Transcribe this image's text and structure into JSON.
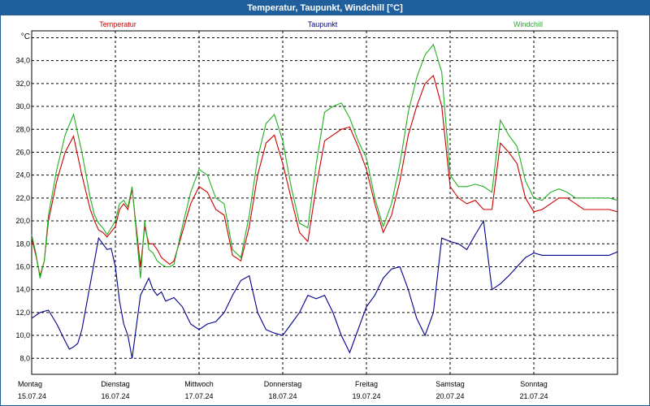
{
  "title": "Temperatur, Taupunkt, Windchill [°C]",
  "chart_data": {
    "type": "line",
    "title": "Temperatur, Taupunkt, Windchill [°C]",
    "ylabel": "°C",
    "xlabel": "",
    "ylim": [
      6.6,
      36.6
    ],
    "xlim": [
      0,
      7
    ],
    "yticks": [
      8.0,
      10.0,
      12.0,
      14.0,
      16.0,
      18.0,
      20.0,
      22.0,
      24.0,
      26.0,
      28.0,
      30.0,
      32.0,
      34.0
    ],
    "ytick_labels": [
      "8,0",
      "10,0",
      "12,0",
      "14,0",
      "16,0",
      "18,0",
      "20,0",
      "22,0",
      "24,0",
      "26,0",
      "28,0",
      "30,0",
      "32,0",
      "34,0"
    ],
    "x_ticks": [
      {
        "day": "Montag",
        "date": "15.07.24"
      },
      {
        "day": "Dienstag",
        "date": "16.07.24"
      },
      {
        "day": "Mittwoch",
        "date": "17.07.24"
      },
      {
        "day": "Donnerstag",
        "date": "18.07.24"
      },
      {
        "day": "Freitag",
        "date": "19.07.24"
      },
      {
        "day": "Samstag",
        "date": "20.07.24"
      },
      {
        "day": "Sonntag",
        "date": "21.07.24"
      }
    ],
    "grid": true,
    "legend_placement": "top",
    "series": [
      {
        "name": "Temperatur",
        "color": "#cc0000",
        "x": [
          0.0,
          0.05,
          0.1,
          0.15,
          0.2,
          0.3,
          0.4,
          0.5,
          0.6,
          0.7,
          0.75,
          0.8,
          0.85,
          0.9,
          1.0,
          1.05,
          1.1,
          1.15,
          1.2,
          1.3,
          1.35,
          1.4,
          1.45,
          1.5,
          1.55,
          1.6,
          1.65,
          1.7,
          1.8,
          1.9,
          2.0,
          2.1,
          2.2,
          2.3,
          2.4,
          2.5,
          2.6,
          2.7,
          2.8,
          2.9,
          3.0,
          3.1,
          3.2,
          3.3,
          3.4,
          3.5,
          3.6,
          3.7,
          3.8,
          3.9,
          4.0,
          4.1,
          4.2,
          4.3,
          4.4,
          4.5,
          4.6,
          4.7,
          4.8,
          4.9,
          5.0,
          5.1,
          5.2,
          5.3,
          5.4,
          5.5,
          5.6,
          5.7,
          5.8,
          5.9,
          6.0,
          6.1,
          6.2,
          6.3,
          6.4,
          6.5,
          6.6,
          6.7,
          6.8,
          6.9,
          7.0
        ],
        "values": [
          18.5,
          17.0,
          15.2,
          16.5,
          20.0,
          23.5,
          26.0,
          27.4,
          24.0,
          21.0,
          20.0,
          19.2,
          19.0,
          18.6,
          19.5,
          21.0,
          21.5,
          21.0,
          22.8,
          16.0,
          19.5,
          18.0,
          18.0,
          17.5,
          16.8,
          16.5,
          16.2,
          16.5,
          19.0,
          21.5,
          23.0,
          22.5,
          21.0,
          20.5,
          17.0,
          16.5,
          19.5,
          24.0,
          26.8,
          27.5,
          25.0,
          22.0,
          19.0,
          18.2,
          23.0,
          27.0,
          27.5,
          28.0,
          28.2,
          26.5,
          24.5,
          21.5,
          19.0,
          20.5,
          23.5,
          27.5,
          30.0,
          32.0,
          32.7,
          30.0,
          23.0,
          22.0,
          21.5,
          21.8,
          21.0,
          21.0,
          26.8,
          26.0,
          25.0,
          22.0,
          20.8,
          21.0,
          21.5,
          22.0,
          22.0,
          21.5,
          21.0,
          21.0,
          21.0,
          21.0,
          20.8
        ]
      },
      {
        "name": "Taupunkt",
        "color": "#00008b",
        "x": [
          0.0,
          0.1,
          0.2,
          0.3,
          0.4,
          0.45,
          0.5,
          0.55,
          0.6,
          0.7,
          0.8,
          0.9,
          0.95,
          1.0,
          1.05,
          1.1,
          1.15,
          1.2,
          1.3,
          1.4,
          1.45,
          1.5,
          1.55,
          1.6,
          1.7,
          1.8,
          1.9,
          2.0,
          2.1,
          2.2,
          2.3,
          2.4,
          2.5,
          2.6,
          2.7,
          2.8,
          2.9,
          3.0,
          3.1,
          3.2,
          3.3,
          3.4,
          3.5,
          3.6,
          3.7,
          3.8,
          3.9,
          4.0,
          4.1,
          4.2,
          4.3,
          4.4,
          4.5,
          4.6,
          4.7,
          4.8,
          4.9,
          5.0,
          5.1,
          5.2,
          5.3,
          5.4,
          5.5,
          5.6,
          5.7,
          5.8,
          5.9,
          6.0,
          6.1,
          6.2,
          6.3,
          6.4,
          6.5,
          6.6,
          6.7,
          6.8,
          6.9,
          7.0
        ],
        "values": [
          11.5,
          12.0,
          12.2,
          11.0,
          9.5,
          8.8,
          9.0,
          9.3,
          10.5,
          14.5,
          18.5,
          17.5,
          17.6,
          16.0,
          13.0,
          11.0,
          10.0,
          8.0,
          13.5,
          15.0,
          14.0,
          13.5,
          13.8,
          13.0,
          13.3,
          12.5,
          11.0,
          10.5,
          11.0,
          11.2,
          12.0,
          13.5,
          14.8,
          15.2,
          12.0,
          10.5,
          10.2,
          10.0,
          11.0,
          12.0,
          13.5,
          13.2,
          13.5,
          12.0,
          10.0,
          8.5,
          10.5,
          12.5,
          13.5,
          15.0,
          15.8,
          16.0,
          14.0,
          11.5,
          10.0,
          12.0,
          18.5,
          18.2,
          18.0,
          17.5,
          18.8,
          20.0,
          14.0,
          14.5,
          15.2,
          16.0,
          16.8,
          17.2,
          17.0,
          17.0,
          17.0,
          17.0,
          17.0,
          17.0,
          17.0,
          17.0,
          17.0,
          17.3
        ]
      },
      {
        "name": "Windchill",
        "color": "#22b022",
        "x": [
          0.0,
          0.05,
          0.1,
          0.15,
          0.2,
          0.3,
          0.4,
          0.5,
          0.6,
          0.7,
          0.75,
          0.8,
          0.85,
          0.9,
          1.0,
          1.05,
          1.1,
          1.15,
          1.2,
          1.3,
          1.35,
          1.4,
          1.45,
          1.5,
          1.55,
          1.6,
          1.65,
          1.7,
          1.8,
          1.9,
          2.0,
          2.1,
          2.2,
          2.3,
          2.4,
          2.5,
          2.6,
          2.7,
          2.8,
          2.9,
          3.0,
          3.1,
          3.2,
          3.3,
          3.4,
          3.5,
          3.6,
          3.7,
          3.8,
          3.9,
          4.0,
          4.1,
          4.2,
          4.3,
          4.4,
          4.5,
          4.6,
          4.7,
          4.8,
          4.9,
          5.0,
          5.1,
          5.2,
          5.3,
          5.4,
          5.5,
          5.6,
          5.7,
          5.8,
          5.9,
          6.0,
          6.1,
          6.2,
          6.3,
          6.4,
          6.5,
          6.6,
          6.7,
          6.8,
          6.9,
          7.0
        ],
        "values": [
          18.8,
          17.2,
          15.0,
          16.5,
          20.5,
          24.5,
          27.5,
          29.3,
          26.0,
          22.0,
          20.5,
          19.8,
          19.4,
          18.8,
          20.0,
          21.5,
          21.8,
          21.2,
          23.0,
          15.0,
          20.0,
          17.5,
          17.2,
          16.5,
          16.2,
          16.0,
          16.0,
          16.2,
          19.5,
          22.5,
          24.5,
          24.0,
          22.0,
          21.5,
          17.5,
          16.8,
          20.5,
          25.5,
          28.5,
          29.3,
          27.0,
          23.0,
          19.8,
          19.4,
          25.0,
          29.5,
          30.0,
          30.3,
          29.0,
          27.0,
          25.5,
          22.0,
          19.5,
          21.5,
          25.0,
          29.5,
          32.5,
          34.5,
          35.4,
          33.0,
          24.0,
          23.0,
          23.0,
          23.2,
          23.0,
          22.5,
          28.8,
          27.5,
          26.5,
          23.5,
          22.0,
          21.8,
          22.5,
          22.8,
          22.5,
          22.0,
          22.0,
          22.0,
          22.0,
          22.0,
          21.8
        ]
      }
    ]
  }
}
